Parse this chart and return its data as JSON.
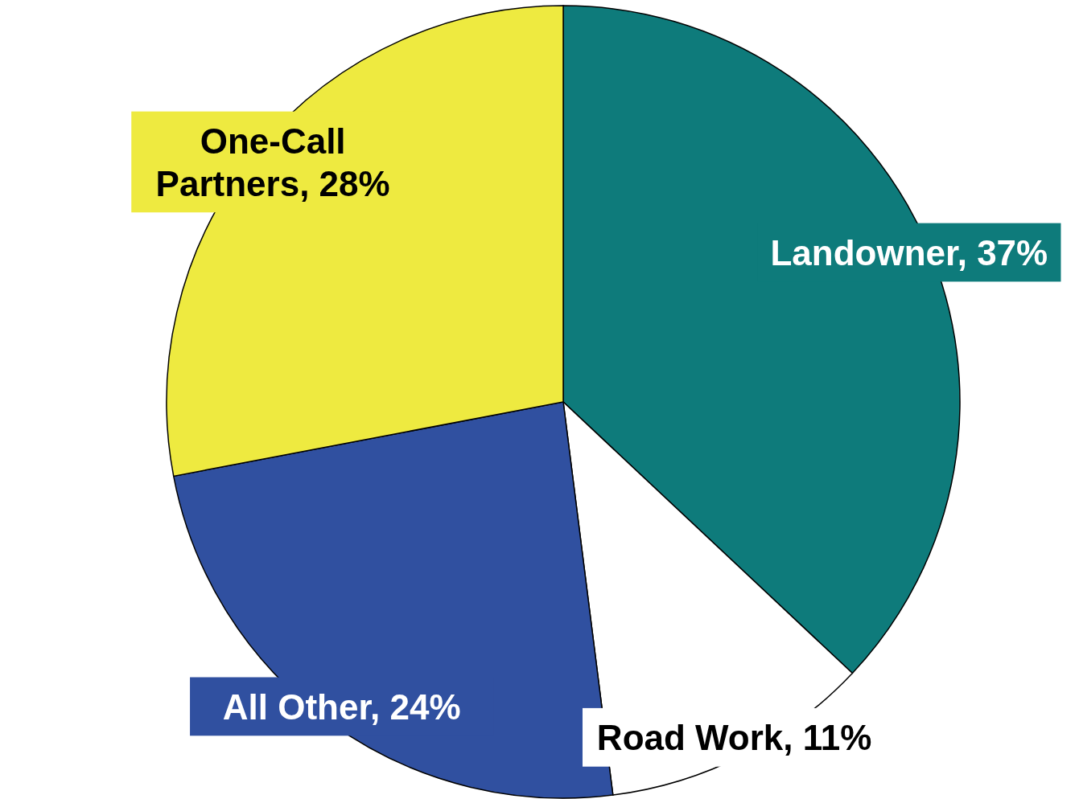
{
  "chart_data": {
    "type": "pie",
    "categories": [
      "Landowner",
      "Road Work",
      "All Other",
      "One-Call Partners"
    ],
    "values": [
      37,
      11,
      24,
      28
    ],
    "colors": [
      "#0e7b7b",
      "#ffffff",
      "#3050a0",
      "#eeea40"
    ],
    "value_labels": [
      "37%",
      "11%",
      "24%",
      "28%"
    ]
  }
}
